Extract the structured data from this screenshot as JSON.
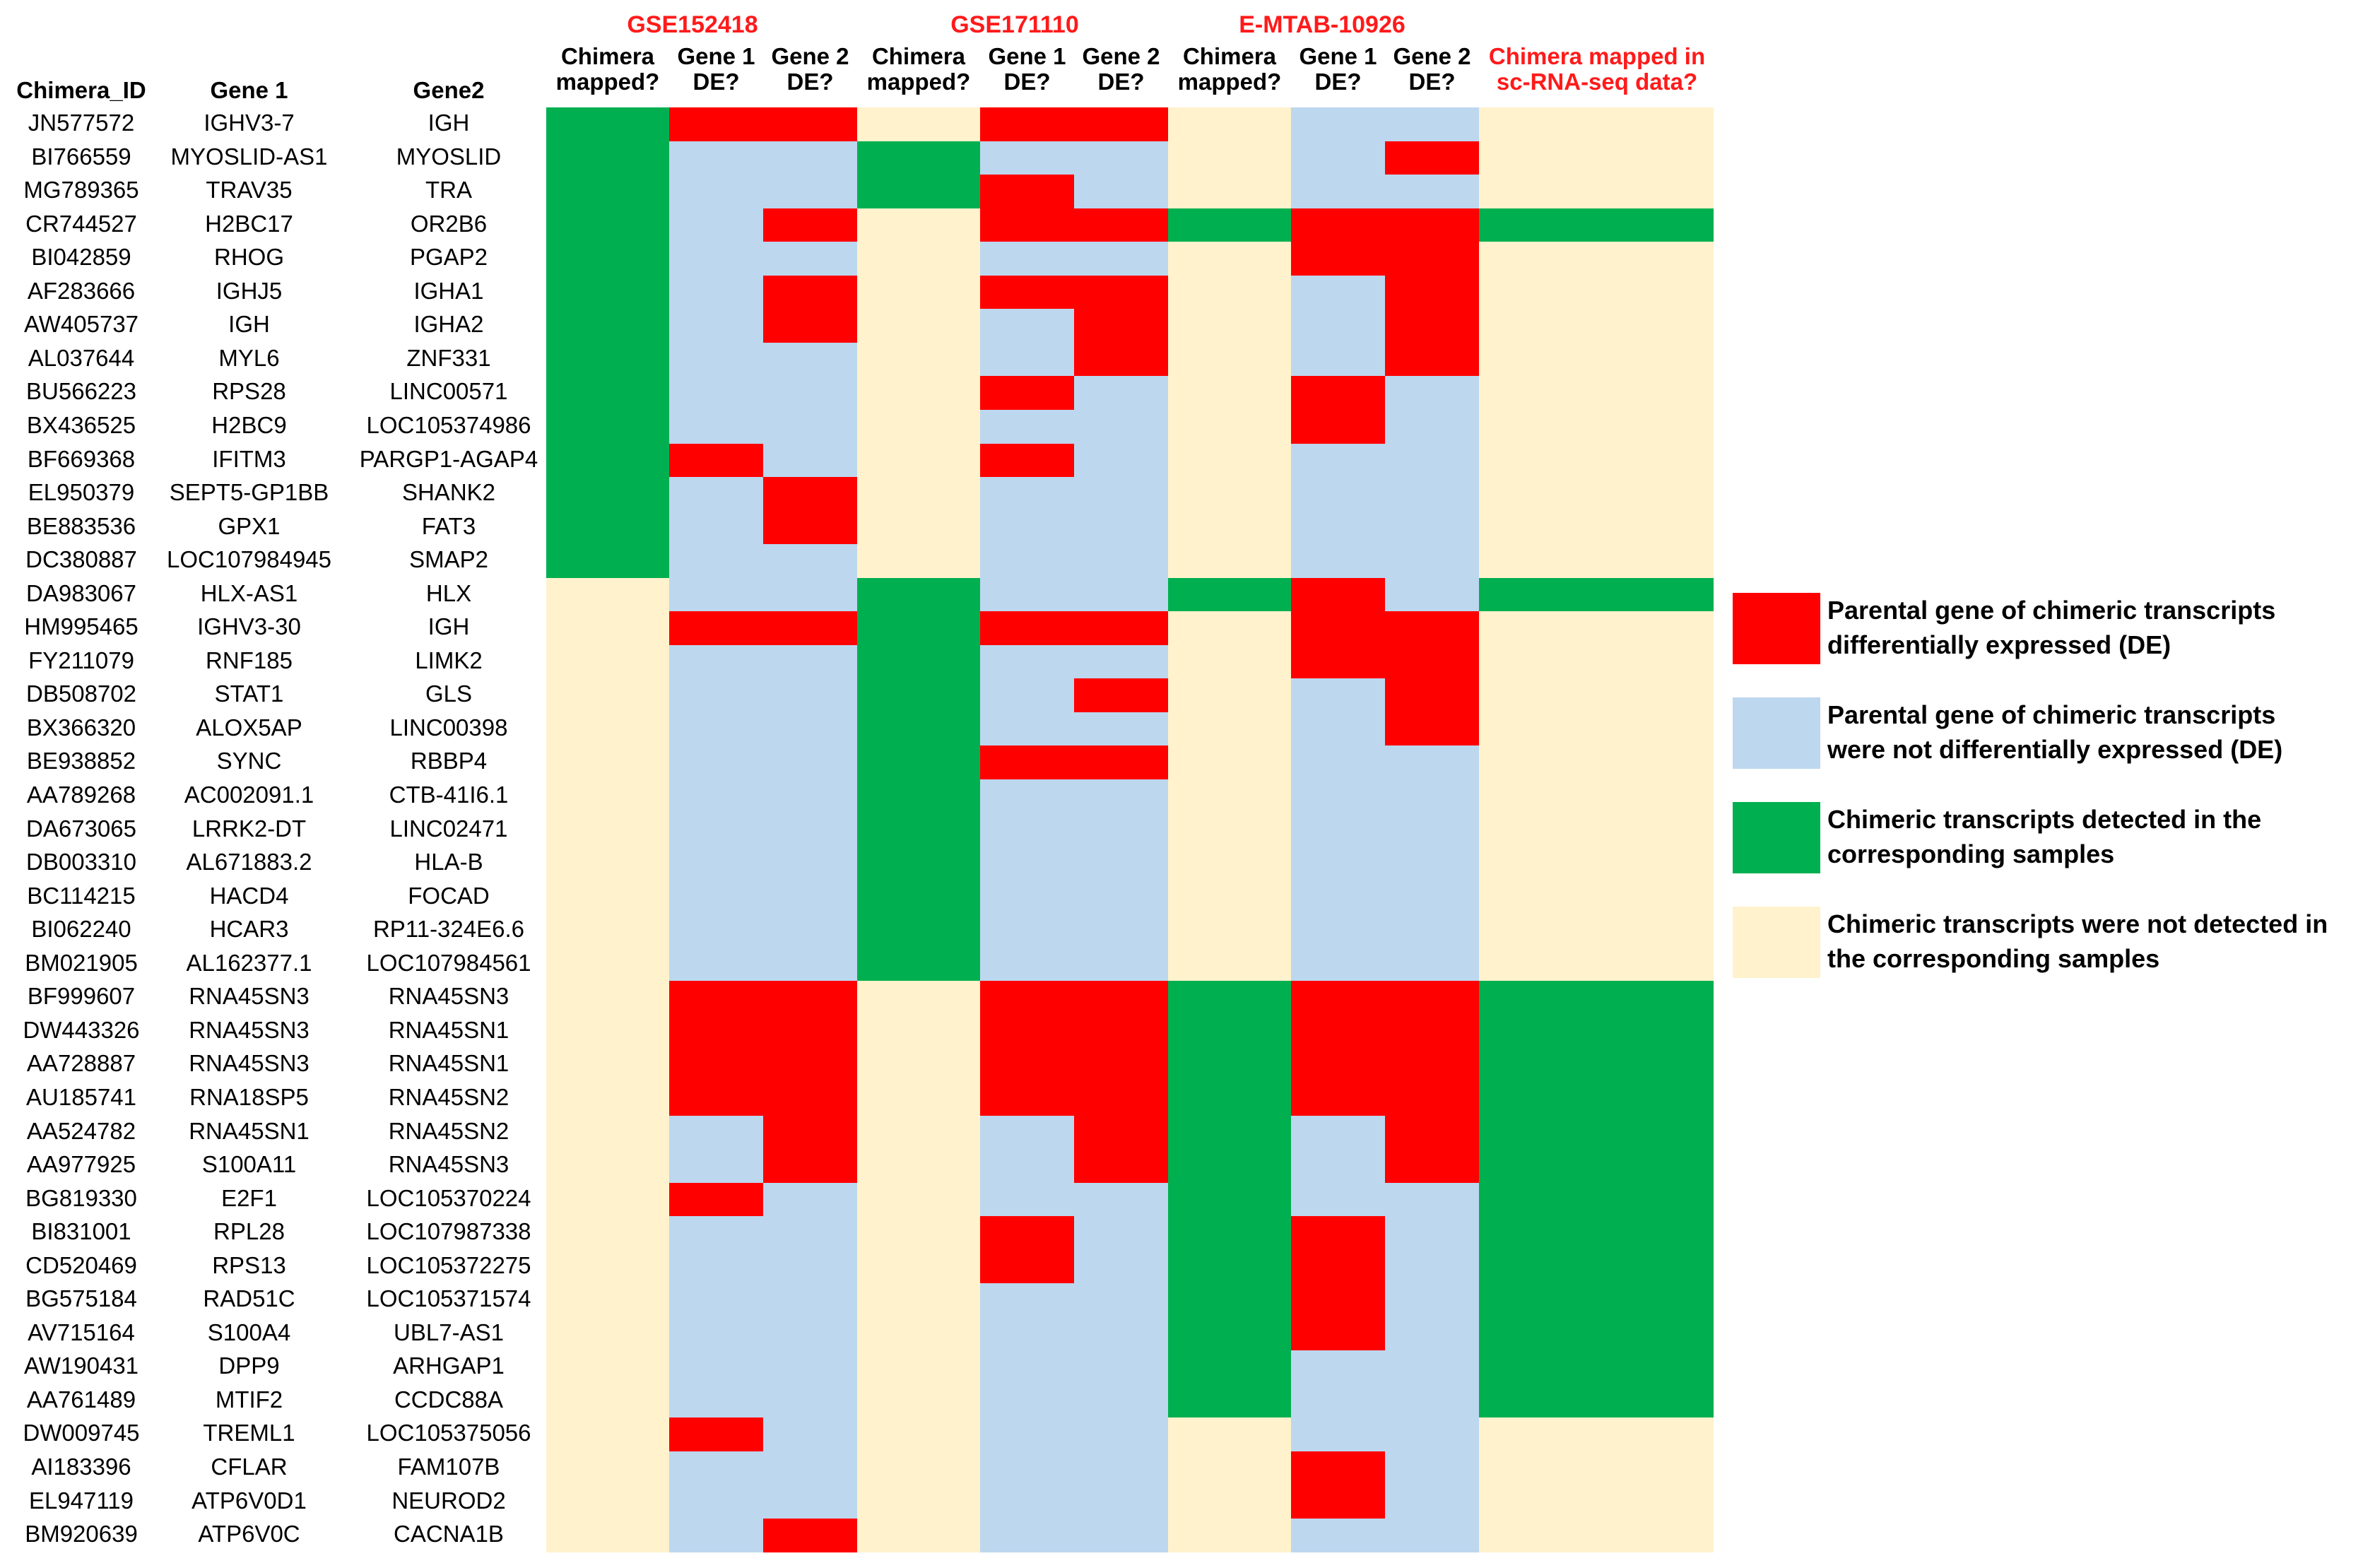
{
  "datasets": [
    "GSE152418",
    "GSE171110",
    "E-MTAB-10926"
  ],
  "headers": {
    "chimera_id": "Chimera_ID",
    "gene1": "Gene 1",
    "gene2": "Gene2",
    "mapped_l1": "Chimera",
    "mapped_l2": "mapped?",
    "g1_l1": "Gene 1",
    "g1_l2": "DE?",
    "g2_l1": "Gene 2",
    "g2_l2": "DE?",
    "sc_l1": "Chimera mapped in",
    "sc_l2": "sc-RNA-seq data?"
  },
  "colors": {
    "de": "#ff0000",
    "not_de": "#bdd7ee",
    "detected": "#00b050",
    "not_detected": "#fff2cc"
  },
  "legend": [
    {
      "key": "R",
      "l1": "Parental gene of chimeric transcripts",
      "l2": "differentially expressed (DE)"
    },
    {
      "key": "B",
      "l1": "Parental gene of chimeric transcripts",
      "l2": "were not differentially expressed (DE)"
    },
    {
      "key": "G",
      "l1": "Chimeric transcripts detected in the",
      "l2": "corresponding samples"
    },
    {
      "key": "Y",
      "l1": "Chimeric transcripts were not detected in",
      "l2": "the corresponding samples"
    }
  ],
  "chart_data": {
    "type": "heatmap",
    "title": "",
    "columns": [
      "GSE152418 Chimera mapped?",
      "GSE152418 Gene 1 DE?",
      "GSE152418 Gene 2 DE?",
      "GSE171110 Chimera mapped?",
      "GSE171110 Gene 1 DE?",
      "GSE171110 Gene 2 DE?",
      "E-MTAB-10926 Chimera mapped?",
      "E-MTAB-10926 Gene 1 DE?",
      "E-MTAB-10926 Gene 2 DE?",
      "Chimera mapped in sc-RNA-seq data?"
    ],
    "codes": {
      "G": "Chimeric transcripts detected",
      "Y": "Chimeric transcripts not detected",
      "R": "Parental gene DE",
      "B": "Parental gene not DE"
    },
    "rows": [
      {
        "id": "JN577572",
        "gene1": "IGHV3-7",
        "gene2": "IGH",
        "cells": "GRRYRRYBBY"
      },
      {
        "id": "BI766559",
        "gene1": "MYOSLID-AS1",
        "gene2": "MYOSLID",
        "cells": "GBBGBBYBRY"
      },
      {
        "id": "MG789365",
        "gene1": "TRAV35",
        "gene2": "TRA",
        "cells": "GBBGRBYBBY"
      },
      {
        "id": "CR744527",
        "gene1": "H2BC17",
        "gene2": "OR2B6",
        "cells": "GBRYRRGRRG"
      },
      {
        "id": "BI042859",
        "gene1": "RHOG",
        "gene2": "PGAP2",
        "cells": "GBBYBBYRRY"
      },
      {
        "id": "AF283666",
        "gene1": "IGHJ5",
        "gene2": "IGHA1",
        "cells": "GBRYRRYBRY"
      },
      {
        "id": "AW405737",
        "gene1": "IGH",
        "gene2": "IGHA2",
        "cells": "GBRYBRYBRY"
      },
      {
        "id": "AL037644",
        "gene1": "MYL6",
        "gene2": "ZNF331",
        "cells": "GBBYBRYBRY"
      },
      {
        "id": "BU566223",
        "gene1": "RPS28",
        "gene2": "LINC00571",
        "cells": "GBBYRBYRBY"
      },
      {
        "id": "BX436525",
        "gene1": "H2BC9",
        "gene2": "LOC105374986",
        "cells": "GBBYBBYRBY"
      },
      {
        "id": "BF669368",
        "gene1": "IFITM3",
        "gene2": "PARGP1-AGAP4",
        "cells": "GRBYRBYBBY"
      },
      {
        "id": "EL950379",
        "gene1": "SEPT5-GP1BB",
        "gene2": "SHANK2",
        "cells": "GBRYBBYBBY"
      },
      {
        "id": "BE883536",
        "gene1": "GPX1",
        "gene2": "FAT3",
        "cells": "GBRYBBYBBY"
      },
      {
        "id": "DC380887",
        "gene1": "LOC107984945",
        "gene2": "SMAP2",
        "cells": "GBBYBBYBBY"
      },
      {
        "id": "DA983067",
        "gene1": "HLX-AS1",
        "gene2": "HLX",
        "cells": "YBBGBBGRBG"
      },
      {
        "id": "HM995465",
        "gene1": "IGHV3-30",
        "gene2": "IGH",
        "cells": "YRRGRRYRRY"
      },
      {
        "id": "FY211079",
        "gene1": "RNF185",
        "gene2": "LIMK2",
        "cells": "YBBGBBYRRY"
      },
      {
        "id": "DB508702",
        "gene1": "STAT1",
        "gene2": "GLS",
        "cells": "YBBGBRYBRY"
      },
      {
        "id": "BX366320",
        "gene1": "ALOX5AP",
        "gene2": "LINC00398",
        "cells": "YBBGBBYBRY"
      },
      {
        "id": "BE938852",
        "gene1": "SYNC",
        "gene2": "RBBP4",
        "cells": "YBBGRRYBBY"
      },
      {
        "id": "AA789268",
        "gene1": "AC002091.1",
        "gene2": "CTB-41I6.1",
        "cells": "YBBGBBYBBY"
      },
      {
        "id": "DA673065",
        "gene1": "LRRK2-DT",
        "gene2": "LINC02471",
        "cells": "YBBGBBYBBY"
      },
      {
        "id": "DB003310",
        "gene1": "AL671883.2",
        "gene2": "HLA-B",
        "cells": "YBBGBBYBBY"
      },
      {
        "id": "BC114215",
        "gene1": "HACD4",
        "gene2": "FOCAD",
        "cells": "YBBGBBYBBY"
      },
      {
        "id": "BI062240",
        "gene1": "HCAR3",
        "gene2": "RP11-324E6.6",
        "cells": "YBBGBBYBBY"
      },
      {
        "id": "BM021905",
        "gene1": "AL162377.1",
        "gene2": "LOC107984561",
        "cells": "YBBGBBYBBY"
      },
      {
        "id": "BF999607",
        "gene1": "RNA45SN3",
        "gene2": "RNA45SN3",
        "cells": "YRRYRRGRRG"
      },
      {
        "id": "DW443326",
        "gene1": "RNA45SN3",
        "gene2": "RNA45SN1",
        "cells": "YRRYRRGRRG"
      },
      {
        "id": "AA728887",
        "gene1": "RNA45SN3",
        "gene2": "RNA45SN1",
        "cells": "YRRYRRGRRG"
      },
      {
        "id": "AU185741",
        "gene1": "RNA18SP5",
        "gene2": "RNA45SN2",
        "cells": "YRRYRRGRRG"
      },
      {
        "id": "AA524782",
        "gene1": "RNA45SN1",
        "gene2": "RNA45SN2",
        "cells": "YBRYBRGBRG"
      },
      {
        "id": "AA977925",
        "gene1": "S100A11",
        "gene2": "RNA45SN3",
        "cells": "YBRYBRGBRG"
      },
      {
        "id": "BG819330",
        "gene1": "E2F1",
        "gene2": "LOC105370224",
        "cells": "YRBYBBGBBG"
      },
      {
        "id": "BI831001",
        "gene1": "RPL28",
        "gene2": "LOC107987338",
        "cells": "YBBYRBGRBG"
      },
      {
        "id": "CD520469",
        "gene1": "RPS13",
        "gene2": "LOC105372275",
        "cells": "YBBYRBGRBG"
      },
      {
        "id": "BG575184",
        "gene1": "RAD51C",
        "gene2": "LOC105371574",
        "cells": "YBBYBBGRBG"
      },
      {
        "id": "AV715164",
        "gene1": "S100A4",
        "gene2": "UBL7-AS1",
        "cells": "YBBYBBGRBG"
      },
      {
        "id": "AW190431",
        "gene1": "DPP9",
        "gene2": "ARHGAP1",
        "cells": "YBBYBBGBBG"
      },
      {
        "id": "AA761489",
        "gene1": "MTIF2",
        "gene2": "CCDC88A",
        "cells": "YBBYBBGBBG"
      },
      {
        "id": "DW009745",
        "gene1": "TREML1",
        "gene2": "LOC105375056",
        "cells": "YRBYBBYBBY"
      },
      {
        "id": "AI183396",
        "gene1": "CFLAR",
        "gene2": "FAM107B",
        "cells": "YBBYBBYRBY"
      },
      {
        "id": "EL947119",
        "gene1": "ATP6V0D1",
        "gene2": "NEUROD2",
        "cells": "YBBYBBYRBY"
      },
      {
        "id": "BM920639",
        "gene1": "ATP6V0C",
        "gene2": "CACNA1B",
        "cells": "YBRYBBYBBY"
      }
    ]
  }
}
